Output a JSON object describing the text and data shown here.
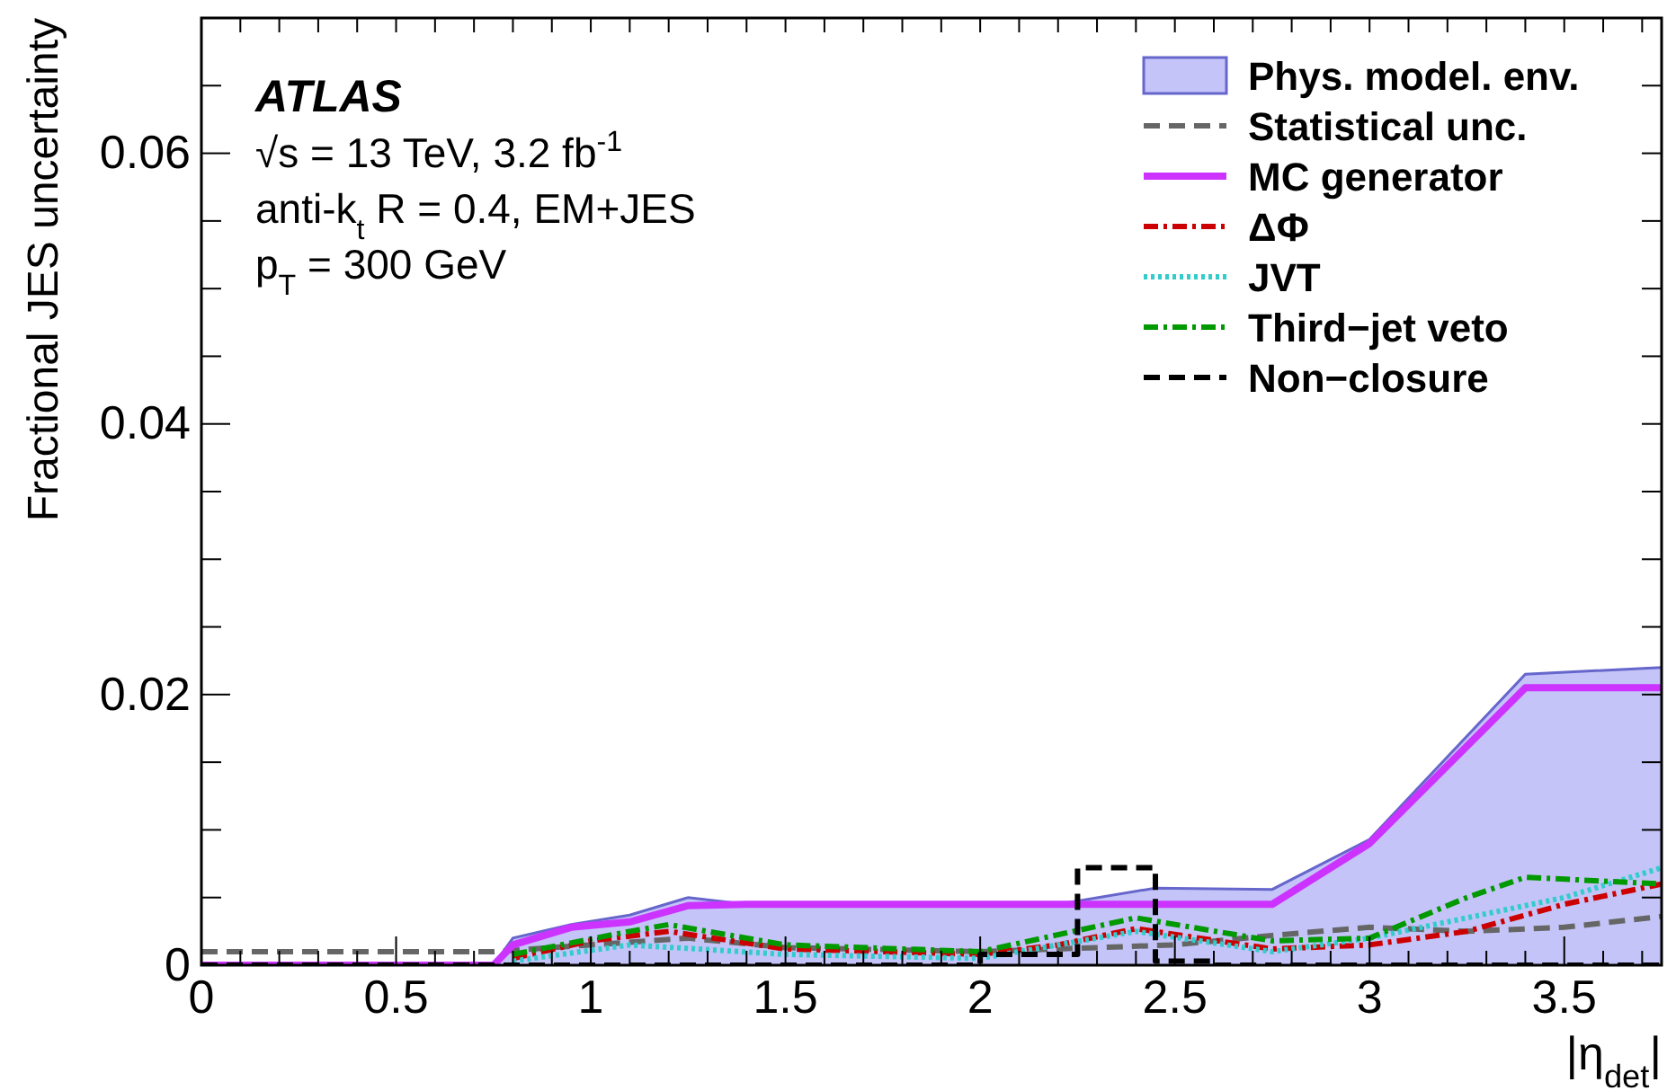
{
  "chart_data": {
    "type": "line",
    "xlabel": "|η$_{det}$|",
    "ylabel": "Fractional JES uncertainty",
    "annotations": [
      "ATLAS",
      "√s = 13 TeV, 3.2 fb$^{-1}$",
      "anti-k$_{t}$ R = 0.4, EM+JES",
      "p$_{T}$ = 300 GeV"
    ],
    "xlim": [
      0,
      3.75
    ],
    "ylim": [
      0,
      0.07
    ],
    "xticks": [
      0,
      {
        "value": 0.1,
        "label": null
      },
      {
        "value": 0.2,
        "label": null
      },
      {
        "value": 0.3,
        "label": null
      },
      {
        "value": 0.4,
        "label": null
      },
      0.5,
      {
        "value": 0.6,
        "label": null
      },
      {
        "value": 0.7,
        "label": null
      },
      {
        "value": 0.8,
        "label": null
      },
      {
        "value": 0.9,
        "label": null
      },
      1,
      {
        "value": 1.1,
        "label": null
      },
      {
        "value": 1.2,
        "label": null
      },
      {
        "value": 1.3,
        "label": null
      },
      {
        "value": 1.4,
        "label": null
      },
      1.5,
      {
        "value": 1.6,
        "label": null
      },
      {
        "value": 1.7,
        "label": null
      },
      {
        "value": 1.8,
        "label": null
      },
      {
        "value": 1.9,
        "label": null
      },
      2,
      {
        "value": 2.1,
        "label": null
      },
      {
        "value": 2.2,
        "label": null
      },
      {
        "value": 2.3,
        "label": null
      },
      {
        "value": 2.4,
        "label": null
      },
      2.5,
      {
        "value": 2.6,
        "label": null
      },
      {
        "value": 2.7,
        "label": null
      },
      {
        "value": 2.8,
        "label": null
      },
      {
        "value": 2.9,
        "label": null
      },
      3,
      {
        "value": 3.1,
        "label": null
      },
      {
        "value": 3.2,
        "label": null
      },
      {
        "value": 3.3,
        "label": null
      },
      {
        "value": 3.4,
        "label": null
      },
      3.5,
      {
        "value": 3.6,
        "label": null
      },
      {
        "value": 3.7,
        "label": null
      }
    ],
    "yticks": [
      0,
      {
        "value": 0.005,
        "label": null
      },
      {
        "value": 0.01,
        "label": null
      },
      {
        "value": 0.015,
        "label": null
      },
      0.02,
      {
        "value": 0.025,
        "label": null
      },
      {
        "value": 0.03,
        "label": null
      },
      {
        "value": 0.035,
        "label": null
      },
      0.04,
      {
        "value": 0.045,
        "label": null
      },
      {
        "value": 0.05,
        "label": null
      },
      {
        "value": 0.055,
        "label": null
      },
      0.06,
      {
        "value": 0.065,
        "label": null
      }
    ],
    "legend": "top right",
    "grid": false,
    "series": [
      {
        "name": "Phys. model. env.",
        "type": "area",
        "color": "#c4c4f8",
        "x": [
          0,
          0.75,
          0.8,
          0.95,
          1.1,
          1.25,
          1.4,
          2.2,
          2.45,
          2.75,
          3.0,
          3.4,
          3.75
        ],
        "values": [
          0,
          0,
          0.002,
          0.003,
          0.0037,
          0.005,
          0.0045,
          0.0045,
          0.0057,
          0.0056,
          0.0093,
          0.0215,
          0.022
        ]
      },
      {
        "name": "Statistical unc.",
        "type": "line",
        "line_style": "dashed",
        "color": "#666666",
        "x": [
          0,
          0.75,
          1.0,
          1.25,
          1.5,
          2.0,
          2.2,
          2.5,
          2.75,
          3.0,
          3.25,
          3.5,
          3.75
        ],
        "values": [
          0.001,
          0.001,
          0.0015,
          0.002,
          0.0013,
          0.001,
          0.0012,
          0.0015,
          0.0022,
          0.0028,
          0.0025,
          0.0028,
          0.0036
        ]
      },
      {
        "name": "MC generator",
        "type": "line",
        "line_style": "solid",
        "color": "#cc33ff",
        "x": [
          0,
          0.75,
          0.8,
          0.95,
          1.1,
          1.25,
          1.4,
          2.75,
          3.0,
          3.4,
          3.75
        ],
        "values": [
          0,
          0,
          0.0015,
          0.0028,
          0.0032,
          0.0044,
          0.0045,
          0.0045,
          0.009,
          0.0205,
          0.0205
        ]
      },
      {
        "name": "ΔΦ",
        "type": "line",
        "line_style": "dashdot",
        "color": "#cc0000",
        "x": [
          0.8,
          1.0,
          1.2,
          1.5,
          2.0,
          2.2,
          2.4,
          2.75,
          3.0,
          3.25,
          3.5,
          3.75
        ],
        "values": [
          0.0005,
          0.0018,
          0.0025,
          0.0012,
          0.0008,
          0.0015,
          0.0027,
          0.0012,
          0.0015,
          0.0025,
          0.0045,
          0.006
        ]
      },
      {
        "name": "JVT",
        "type": "line",
        "line_style": "dotted",
        "color": "#33cccc",
        "x": [
          0.8,
          1.1,
          1.5,
          2.0,
          2.4,
          2.75,
          3.0,
          3.5,
          3.75
        ],
        "values": [
          0.0003,
          0.0015,
          0.0008,
          0.0005,
          0.0025,
          0.001,
          0.002,
          0.005,
          0.0072
        ]
      },
      {
        "name": "Third−jet veto",
        "type": "line",
        "line_style": "dashdot",
        "color": "#009900",
        "x": [
          0.8,
          1.1,
          1.2,
          1.5,
          2.0,
          2.4,
          2.75,
          3.0,
          3.25,
          3.4,
          3.75
        ],
        "values": [
          0.0008,
          0.0025,
          0.003,
          0.0015,
          0.001,
          0.0035,
          0.0018,
          0.002,
          0.005,
          0.0065,
          0.006
        ]
      },
      {
        "name": "Non−closure",
        "type": "step",
        "line_style": "dashed",
        "color": "#000000",
        "x": [
          0,
          2.0,
          2.25,
          2.45,
          2.6,
          3.75
        ],
        "values": [
          0,
          0.0008,
          0.0072,
          0.0003,
          0,
          0
        ]
      }
    ]
  }
}
